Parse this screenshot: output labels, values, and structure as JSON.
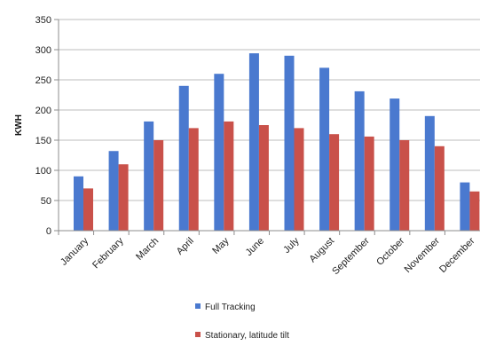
{
  "chart_data": {
    "type": "bar",
    "title": "",
    "xlabel": "",
    "ylabel": "KWH",
    "categories": [
      "January",
      "February",
      "March",
      "April",
      "May",
      "June",
      "July",
      "August",
      "September",
      "October",
      "November",
      "December"
    ],
    "series": [
      {
        "name": "Full Tracking",
        "color": "#4a79cf",
        "values": [
          90,
          132,
          181,
          240,
          260,
          294,
          290,
          270,
          231,
          219,
          190,
          80
        ]
      },
      {
        "name": "Stationary, latitude tilt",
        "color": "#c9514a",
        "values": [
          70,
          110,
          150,
          170,
          181,
          175,
          170,
          160,
          156,
          150,
          140,
          65
        ]
      }
    ],
    "ylim": [
      0,
      350
    ],
    "yticks": [
      "0",
      "50",
      "100",
      "150",
      "200",
      "250",
      "300",
      "350"
    ],
    "grid": true,
    "legend_position": "bottom"
  }
}
